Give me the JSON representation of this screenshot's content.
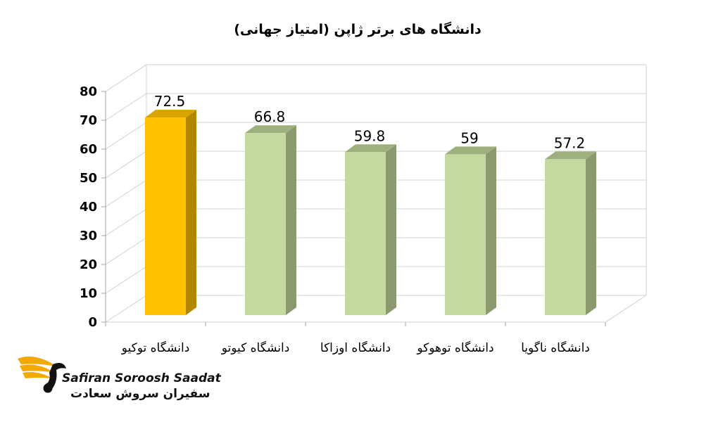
{
  "chart_data": {
    "type": "bar",
    "style": "3d",
    "title": "دانشگاه های برتر ژاپن (امتیاز جهانی)",
    "categories": [
      "دانشگاه توکیو",
      "دانشگاه کیوتو",
      "دانشگاه اوزاکا",
      "دانشگاه توهوکو",
      "دانشگاه ناگویا"
    ],
    "values": [
      72.5,
      66.8,
      59.8,
      59,
      57.2
    ],
    "data_labels": [
      "72.5",
      "66.8",
      "59.8",
      "59",
      "57.2"
    ],
    "ylim": [
      0,
      80
    ],
    "yticks": [
      0,
      10,
      20,
      30,
      40,
      50,
      60,
      70,
      80
    ],
    "grid": true,
    "legend": "none",
    "colors": {
      "highlight": "#FFC000",
      "highlight_side": "#B38600",
      "highlight_top": "#D9A300",
      "default": "#C4D9A0",
      "default_side": "#8A9A6E",
      "default_top": "#9FB07F",
      "grid": "#D0D0D0",
      "axis": "#A6A6A6"
    },
    "highlight_index": 0
  },
  "brand": {
    "name_en": "Safiran Soroosh Saadat",
    "name_fa": "سفیران سروش سعادت"
  }
}
